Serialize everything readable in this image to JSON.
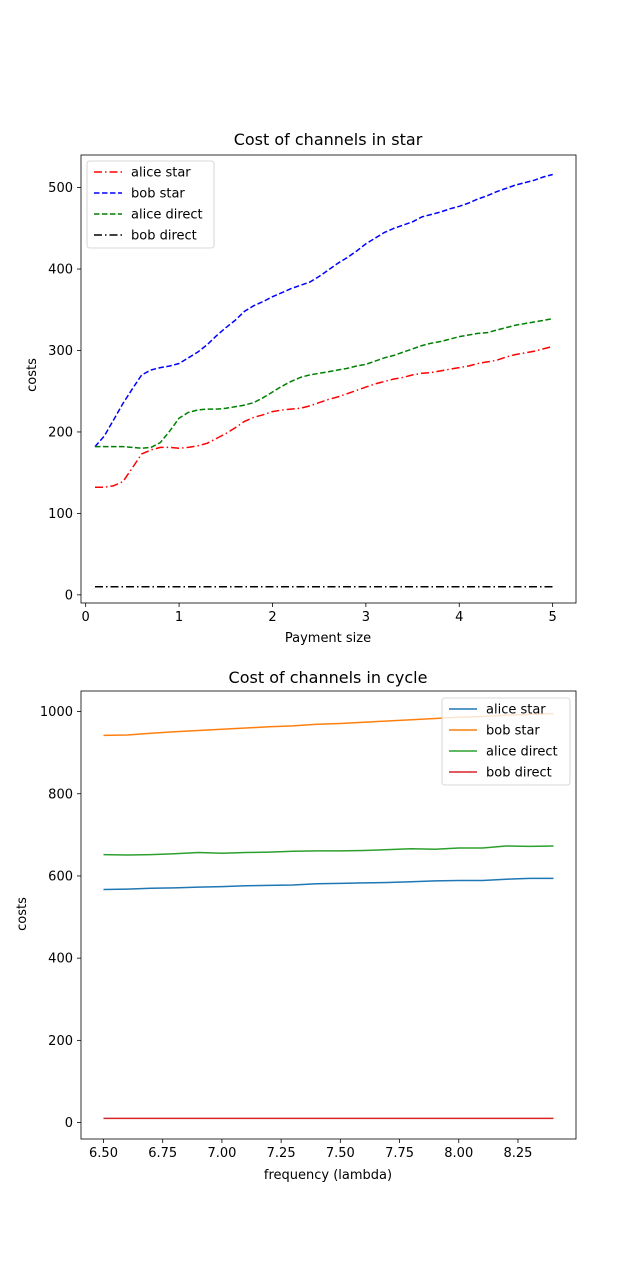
{
  "chart_data": [
    {
      "type": "line",
      "title": "Cost of channels in star",
      "xlabel": "Payment size",
      "ylabel": "costs",
      "xlim": [
        -0.05,
        5.25
      ],
      "ylim": [
        -10,
        540
      ],
      "xticks": [
        0,
        1,
        2,
        3,
        4,
        5
      ],
      "yticks": [
        0,
        100,
        200,
        300,
        400,
        500
      ],
      "grid": false,
      "legend_loc": "upper left",
      "series": [
        {
          "name": "alice star",
          "color": "#ff0000",
          "dash": "dashdot",
          "x": [
            0.1,
            0.2,
            0.3,
            0.4,
            0.5,
            0.6,
            0.7,
            0.8,
            0.9,
            1.0,
            1.1,
            1.2,
            1.3,
            1.4,
            1.5,
            1.6,
            1.7,
            1.8,
            1.9,
            2.0,
            2.1,
            2.2,
            2.3,
            2.4,
            2.5,
            2.6,
            2.7,
            2.8,
            2.9,
            3.0,
            3.1,
            3.2,
            3.3,
            3.4,
            3.5,
            3.6,
            3.7,
            3.8,
            3.9,
            4.0,
            4.1,
            4.2,
            4.3,
            4.4,
            4.5,
            4.6,
            4.7,
            4.8,
            4.9,
            5.0
          ],
          "y": [
            132,
            132,
            134,
            139,
            156,
            173,
            178,
            181,
            181,
            180,
            181,
            183,
            186,
            192,
            198,
            205,
            213,
            218,
            221,
            225,
            227,
            228,
            229,
            232,
            236,
            240,
            243,
            247,
            251,
            255,
            259,
            262,
            265,
            267,
            270,
            272,
            273,
            275,
            277,
            279,
            281,
            284,
            286,
            288,
            292,
            295,
            297,
            299,
            302,
            305
          ]
        },
        {
          "name": "bob star",
          "color": "#0000ff",
          "dash": "dashed",
          "x": [
            0.1,
            0.2,
            0.3,
            0.4,
            0.5,
            0.6,
            0.7,
            0.8,
            0.9,
            1.0,
            1.1,
            1.2,
            1.3,
            1.4,
            1.5,
            1.6,
            1.7,
            1.8,
            1.9,
            2.0,
            2.1,
            2.2,
            2.3,
            2.4,
            2.5,
            2.6,
            2.7,
            2.8,
            2.9,
            3.0,
            3.1,
            3.2,
            3.3,
            3.4,
            3.5,
            3.6,
            3.7,
            3.8,
            3.9,
            4.0,
            4.1,
            4.2,
            4.3,
            4.4,
            4.5,
            4.6,
            4.7,
            4.8,
            4.9,
            5.0
          ],
          "y": [
            182,
            195,
            215,
            235,
            253,
            270,
            276,
            279,
            281,
            284,
            291,
            298,
            307,
            318,
            328,
            337,
            348,
            355,
            360,
            366,
            371,
            376,
            380,
            384,
            391,
            399,
            407,
            414,
            422,
            431,
            438,
            445,
            450,
            454,
            458,
            464,
            467,
            470,
            474,
            477,
            481,
            486,
            490,
            495,
            499,
            503,
            506,
            509,
            513,
            516
          ]
        },
        {
          "name": "alice direct",
          "color": "#008000",
          "dash": "dashed",
          "x": [
            0.1,
            0.2,
            0.3,
            0.4,
            0.5,
            0.6,
            0.7,
            0.8,
            0.9,
            1.0,
            1.1,
            1.2,
            1.3,
            1.4,
            1.5,
            1.6,
            1.7,
            1.8,
            1.9,
            2.0,
            2.1,
            2.2,
            2.3,
            2.4,
            2.5,
            2.6,
            2.7,
            2.8,
            2.9,
            3.0,
            3.1,
            3.2,
            3.3,
            3.4,
            3.5,
            3.6,
            3.7,
            3.8,
            3.9,
            4.0,
            4.1,
            4.2,
            4.3,
            4.4,
            4.5,
            4.6,
            4.7,
            4.8,
            4.9,
            5.0
          ],
          "y": [
            182,
            182,
            182,
            182,
            181,
            180,
            181,
            187,
            201,
            217,
            224,
            227,
            228,
            228,
            229,
            231,
            233,
            236,
            242,
            249,
            256,
            262,
            267,
            270,
            272,
            274,
            276,
            278,
            281,
            283,
            287,
            291,
            294,
            298,
            302,
            306,
            309,
            311,
            314,
            317,
            319,
            321,
            322,
            325,
            328,
            331,
            333,
            335,
            337,
            339
          ]
        },
        {
          "name": "bob direct",
          "color": "#000000",
          "dash": "dashdot",
          "x": [
            0.1,
            5.0
          ],
          "y": [
            10,
            10
          ]
        }
      ]
    },
    {
      "type": "line",
      "title": "Cost of channels in cycle",
      "xlabel": "frequency (lambda)",
      "ylabel": "costs",
      "xlim": [
        6.405,
        8.495
      ],
      "ylim": [
        -40,
        1050
      ],
      "xticks": [
        6.5,
        6.75,
        7.0,
        7.25,
        7.5,
        7.75,
        8.0,
        8.25
      ],
      "xticklabels": [
        "6.50",
        "6.75",
        "7.00",
        "7.25",
        "7.50",
        "7.75",
        "8.00",
        "8.25"
      ],
      "yticks": [
        0,
        200,
        400,
        600,
        800,
        1000
      ],
      "grid": false,
      "legend_loc": "upper right",
      "series": [
        {
          "name": "alice star",
          "color": "#1f77b4",
          "dash": "solid",
          "x": [
            6.5,
            6.6,
            6.7,
            6.8,
            6.9,
            7.0,
            7.1,
            7.2,
            7.3,
            7.4,
            7.5,
            7.6,
            7.7,
            7.8,
            7.9,
            8.0,
            8.1,
            8.2,
            8.3,
            8.4
          ],
          "y": [
            567,
            568,
            570,
            571,
            573,
            574,
            576,
            577,
            578,
            581,
            582,
            583,
            584,
            586,
            588,
            589,
            589,
            592,
            594,
            594
          ]
        },
        {
          "name": "bob star",
          "color": "#ff7f0e",
          "dash": "solid",
          "x": [
            6.5,
            6.6,
            6.7,
            6.8,
            6.9,
            7.0,
            7.1,
            7.2,
            7.3,
            7.4,
            7.5,
            7.6,
            7.7,
            7.8,
            7.9,
            8.0,
            8.1,
            8.2,
            8.3,
            8.4
          ],
          "y": [
            942,
            943,
            947,
            951,
            954,
            957,
            960,
            963,
            965,
            969,
            971,
            974,
            977,
            980,
            983,
            986,
            988,
            991,
            993,
            995
          ]
        },
        {
          "name": "alice direct",
          "color": "#2ca02c",
          "dash": "solid",
          "x": [
            6.5,
            6.6,
            6.7,
            6.8,
            6.9,
            7.0,
            7.1,
            7.2,
            7.3,
            7.4,
            7.5,
            7.6,
            7.7,
            7.8,
            7.9,
            8.0,
            8.1,
            8.2,
            8.3,
            8.4
          ],
          "y": [
            652,
            651,
            652,
            654,
            657,
            655,
            657,
            658,
            660,
            661,
            661,
            662,
            664,
            666,
            665,
            668,
            668,
            673,
            672,
            673
          ]
        },
        {
          "name": "bob direct",
          "color": "#d62728",
          "dash": "solid",
          "x": [
            6.5,
            8.4
          ],
          "y": [
            10,
            10
          ]
        }
      ]
    }
  ]
}
